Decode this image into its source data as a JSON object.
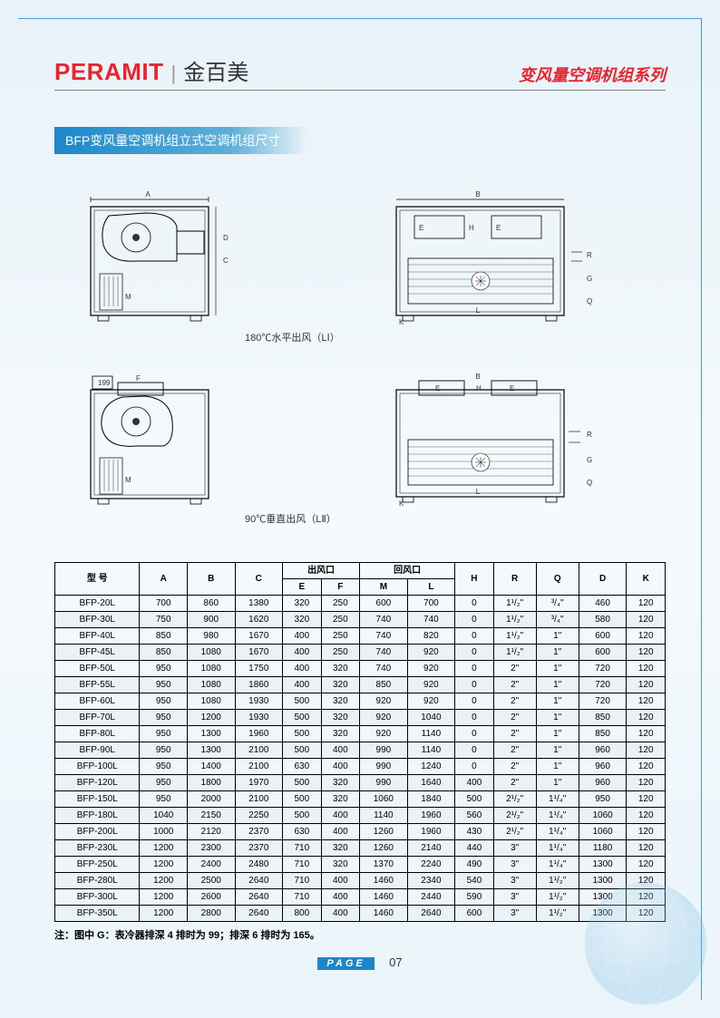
{
  "brand_en": "PERAMIT",
  "brand_cn": "金百美",
  "series_title": "变风量空调机组系列",
  "section_title": "BFP变风量空调机组立式空调机组尺寸",
  "diagram_caption_1": "180℃水平出风（LⅠ）",
  "diagram_caption_2": "90℃垂直出风（LⅡ）",
  "table": {
    "header_row1": [
      "型  号",
      "A",
      "B",
      "C",
      "出风口",
      "回风口",
      "H",
      "R",
      "Q",
      "D",
      "K"
    ],
    "header_row2": [
      "E",
      "F",
      "M",
      "L"
    ],
    "rows": [
      [
        "BFP-20L",
        "700",
        "860",
        "1380",
        "320",
        "250",
        "600",
        "700",
        "0",
        "1¹/₂\"",
        "³/₄\"",
        "460",
        "120"
      ],
      [
        "BFP-30L",
        "750",
        "900",
        "1620",
        "320",
        "250",
        "740",
        "740",
        "0",
        "1¹/₂\"",
        "³/₄\"",
        "580",
        "120"
      ],
      [
        "BFP-40L",
        "850",
        "980",
        "1670",
        "400",
        "250",
        "740",
        "820",
        "0",
        "1¹/₂\"",
        "1\"",
        "600",
        "120"
      ],
      [
        "BFP-45L",
        "850",
        "1080",
        "1670",
        "400",
        "250",
        "740",
        "920",
        "0",
        "1¹/₂\"",
        "1\"",
        "600",
        "120"
      ],
      [
        "BFP-50L",
        "950",
        "1080",
        "1750",
        "400",
        "320",
        "740",
        "920",
        "0",
        "2\"",
        "1\"",
        "720",
        "120"
      ],
      [
        "BFP-55L",
        "950",
        "1080",
        "1860",
        "400",
        "320",
        "850",
        "920",
        "0",
        "2\"",
        "1\"",
        "720",
        "120"
      ],
      [
        "BFP-60L",
        "950",
        "1080",
        "1930",
        "500",
        "320",
        "920",
        "920",
        "0",
        "2\"",
        "1\"",
        "720",
        "120"
      ],
      [
        "BFP-70L",
        "950",
        "1200",
        "1930",
        "500",
        "320",
        "920",
        "1040",
        "0",
        "2\"",
        "1\"",
        "850",
        "120"
      ],
      [
        "BFP-80L",
        "950",
        "1300",
        "1960",
        "500",
        "320",
        "920",
        "1140",
        "0",
        "2\"",
        "1\"",
        "850",
        "120"
      ],
      [
        "BFP-90L",
        "950",
        "1300",
        "2100",
        "500",
        "400",
        "990",
        "1140",
        "0",
        "2\"",
        "1\"",
        "960",
        "120"
      ],
      [
        "BFP-100L",
        "950",
        "1400",
        "2100",
        "630",
        "400",
        "990",
        "1240",
        "0",
        "2\"",
        "1\"",
        "960",
        "120"
      ],
      [
        "BFP-120L",
        "950",
        "1800",
        "1970",
        "500",
        "320",
        "990",
        "1640",
        "400",
        "2\"",
        "1\"",
        "960",
        "120"
      ],
      [
        "BFP-150L",
        "950",
        "2000",
        "2100",
        "500",
        "320",
        "1060",
        "1840",
        "500",
        "2¹/₂\"",
        "1¹/₄\"",
        "950",
        "120"
      ],
      [
        "BFP-180L",
        "1040",
        "2150",
        "2250",
        "500",
        "400",
        "1140",
        "1960",
        "560",
        "2¹/₂\"",
        "1¹/₄\"",
        "1060",
        "120"
      ],
      [
        "BFP-200L",
        "1000",
        "2120",
        "2370",
        "630",
        "400",
        "1260",
        "1960",
        "430",
        "2¹/₂\"",
        "1¹/₄\"",
        "1060",
        "120"
      ],
      [
        "BFP-230L",
        "1200",
        "2300",
        "2370",
        "710",
        "320",
        "1260",
        "2140",
        "440",
        "3\"",
        "1¹/₄\"",
        "1180",
        "120"
      ],
      [
        "BFP-250L",
        "1200",
        "2400",
        "2480",
        "710",
        "320",
        "1370",
        "2240",
        "490",
        "3\"",
        "1¹/₄\"",
        "1300",
        "120"
      ],
      [
        "BFP-280L",
        "1200",
        "2500",
        "2640",
        "710",
        "400",
        "1460",
        "2340",
        "540",
        "3\"",
        "1¹/₂\"",
        "1300",
        "120"
      ],
      [
        "BFP-300L",
        "1200",
        "2600",
        "2640",
        "710",
        "400",
        "1460",
        "2440",
        "590",
        "3\"",
        "1¹/₂\"",
        "1300",
        "120"
      ],
      [
        "BFP-350L",
        "1200",
        "2800",
        "2640",
        "800",
        "400",
        "1460",
        "2640",
        "600",
        "3\"",
        "1¹/₂\"",
        "1300",
        "120"
      ]
    ]
  },
  "footnote": "注：图中 G：表冷器排深 4 排时为 99；排深 6 排时为 165。",
  "page_label": "PAGE",
  "page_number": "07",
  "colors": {
    "accent_red": "#e8252e",
    "accent_blue": "#1b87c9",
    "border_blue": "#4a9cd8",
    "row_alt": "#eaf2f7"
  }
}
